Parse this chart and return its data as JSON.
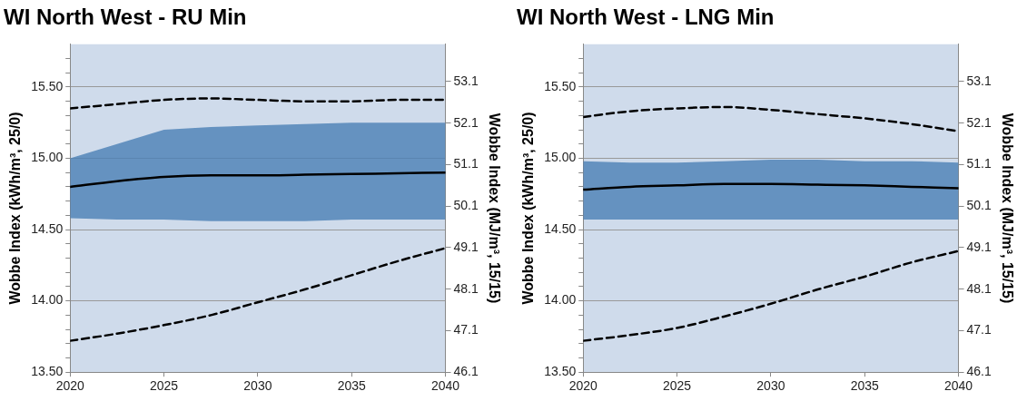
{
  "chart_data": [
    {
      "type": "line",
      "title": "WI North West - RU Min",
      "ylabel": "Wobbe Index (kWh/m³, 25/0)",
      "y2label": "Wobbe Index (MJ/m³, 15/15)",
      "x": [
        2020,
        2022.5,
        2025,
        2027.5,
        2030,
        2032.5,
        2035,
        2037.5,
        2040
      ],
      "series": [
        {
          "color": "#000000",
          "line_style": "dashed",
          "values": [
            15.35,
            15.38,
            15.41,
            15.42,
            15.41,
            15.4,
            15.4,
            15.41,
            15.41
          ]
        },
        {
          "color": "#000000",
          "line_style": "solid",
          "values": [
            14.8,
            14.84,
            14.87,
            14.88,
            14.88,
            14.885,
            14.89,
            14.895,
            14.9
          ],
          "lower": [
            14.58,
            14.57,
            14.57,
            14.56,
            14.56,
            14.56,
            14.57,
            14.57,
            14.57
          ],
          "upper": [
            15.0,
            15.1,
            15.2,
            15.22,
            15.23,
            15.24,
            15.25,
            15.25,
            15.25
          ]
        },
        {
          "color": "#000000",
          "line_style": "dashed",
          "values": [
            13.72,
            13.77,
            13.83,
            13.9,
            13.99,
            14.08,
            14.18,
            14.28,
            14.37
          ]
        }
      ],
      "xlim": [
        2020,
        2040
      ],
      "xticks": [
        2020,
        2025,
        2030,
        2035,
        2040
      ],
      "ylim": [
        13.5,
        15.8
      ],
      "yticks": [
        {
          "value": 13.5,
          "label": "13.50"
        },
        {
          "value": 13.6,
          "label": null
        },
        {
          "value": 13.7,
          "label": null
        },
        {
          "value": 13.8,
          "label": null
        },
        {
          "value": 13.9,
          "label": null
        },
        {
          "value": 14.0,
          "label": "14.00"
        },
        {
          "value": 14.1,
          "label": null
        },
        {
          "value": 14.2,
          "label": null
        },
        {
          "value": 14.3,
          "label": null
        },
        {
          "value": 14.4,
          "label": null
        },
        {
          "value": 14.5,
          "label": "14.50"
        },
        {
          "value": 14.6,
          "label": null
        },
        {
          "value": 14.7,
          "label": null
        },
        {
          "value": 14.8,
          "label": null
        },
        {
          "value": 14.9,
          "label": null
        },
        {
          "value": 15.0,
          "label": "15.00"
        },
        {
          "value": 15.1,
          "label": null
        },
        {
          "value": 15.2,
          "label": null
        },
        {
          "value": 15.3,
          "label": null
        },
        {
          "value": 15.4,
          "label": null
        },
        {
          "value": 15.5,
          "label": "15.50"
        },
        {
          "value": 15.6,
          "label": null
        },
        {
          "value": 15.7,
          "label": null
        }
      ],
      "y2lim": [
        46.1,
        54.0
      ],
      "y2ticks": [
        46.1,
        47.1,
        48.1,
        49.1,
        50.1,
        51.1,
        52.1,
        53.1
      ],
      "grid": "y",
      "legend": false,
      "marker": "none"
    },
    {
      "type": "line",
      "title": "WI North West - LNG Min",
      "ylabel": "Wobbe Index (kWh/m³, 25/0)",
      "y2label": "Wobbe Index (MJ/m³, 15/15)",
      "x": [
        2020,
        2022.5,
        2025,
        2027.5,
        2030,
        2032.5,
        2035,
        2037.5,
        2040
      ],
      "series": [
        {
          "color": "#000000",
          "line_style": "dashed",
          "values": [
            15.29,
            15.33,
            15.35,
            15.36,
            15.34,
            15.31,
            15.28,
            15.24,
            15.19
          ]
        },
        {
          "color": "#000000",
          "line_style": "solid",
          "values": [
            14.78,
            14.8,
            14.81,
            14.82,
            14.82,
            14.815,
            14.81,
            14.8,
            14.79
          ],
          "lower": [
            14.57,
            14.57,
            14.57,
            14.57,
            14.57,
            14.57,
            14.57,
            14.57,
            14.57
          ],
          "upper": [
            14.98,
            14.97,
            14.97,
            14.98,
            14.99,
            14.99,
            14.98,
            14.98,
            14.97
          ]
        },
        {
          "color": "#000000",
          "line_style": "dashed",
          "values": [
            13.72,
            13.76,
            13.81,
            13.89,
            13.98,
            14.08,
            14.17,
            14.27,
            14.35
          ]
        }
      ],
      "xlim": [
        2020,
        2040
      ],
      "xticks": [
        2020,
        2025,
        2030,
        2035,
        2040
      ],
      "ylim": [
        13.5,
        15.8
      ],
      "yticks": [
        {
          "value": 13.5,
          "label": "13.50"
        },
        {
          "value": 13.6,
          "label": null
        },
        {
          "value": 13.7,
          "label": null
        },
        {
          "value": 13.8,
          "label": null
        },
        {
          "value": 13.9,
          "label": null
        },
        {
          "value": 14.0,
          "label": "14.00"
        },
        {
          "value": 14.1,
          "label": null
        },
        {
          "value": 14.2,
          "label": null
        },
        {
          "value": 14.3,
          "label": null
        },
        {
          "value": 14.4,
          "label": null
        },
        {
          "value": 14.5,
          "label": "14.50"
        },
        {
          "value": 14.6,
          "label": null
        },
        {
          "value": 14.7,
          "label": null
        },
        {
          "value": 14.8,
          "label": null
        },
        {
          "value": 14.9,
          "label": null
        },
        {
          "value": 15.0,
          "label": "15.00"
        },
        {
          "value": 15.1,
          "label": null
        },
        {
          "value": 15.2,
          "label": null
        },
        {
          "value": 15.3,
          "label": null
        },
        {
          "value": 15.4,
          "label": null
        },
        {
          "value": 15.5,
          "label": "15.50"
        },
        {
          "value": 15.6,
          "label": null
        },
        {
          "value": 15.7,
          "label": null
        }
      ],
      "y2lim": [
        46.1,
        54.0
      ],
      "y2ticks": [
        46.1,
        47.1,
        48.1,
        49.1,
        50.1,
        51.1,
        52.1,
        53.1
      ],
      "grid": "y",
      "legend": false,
      "marker": "none"
    }
  ]
}
